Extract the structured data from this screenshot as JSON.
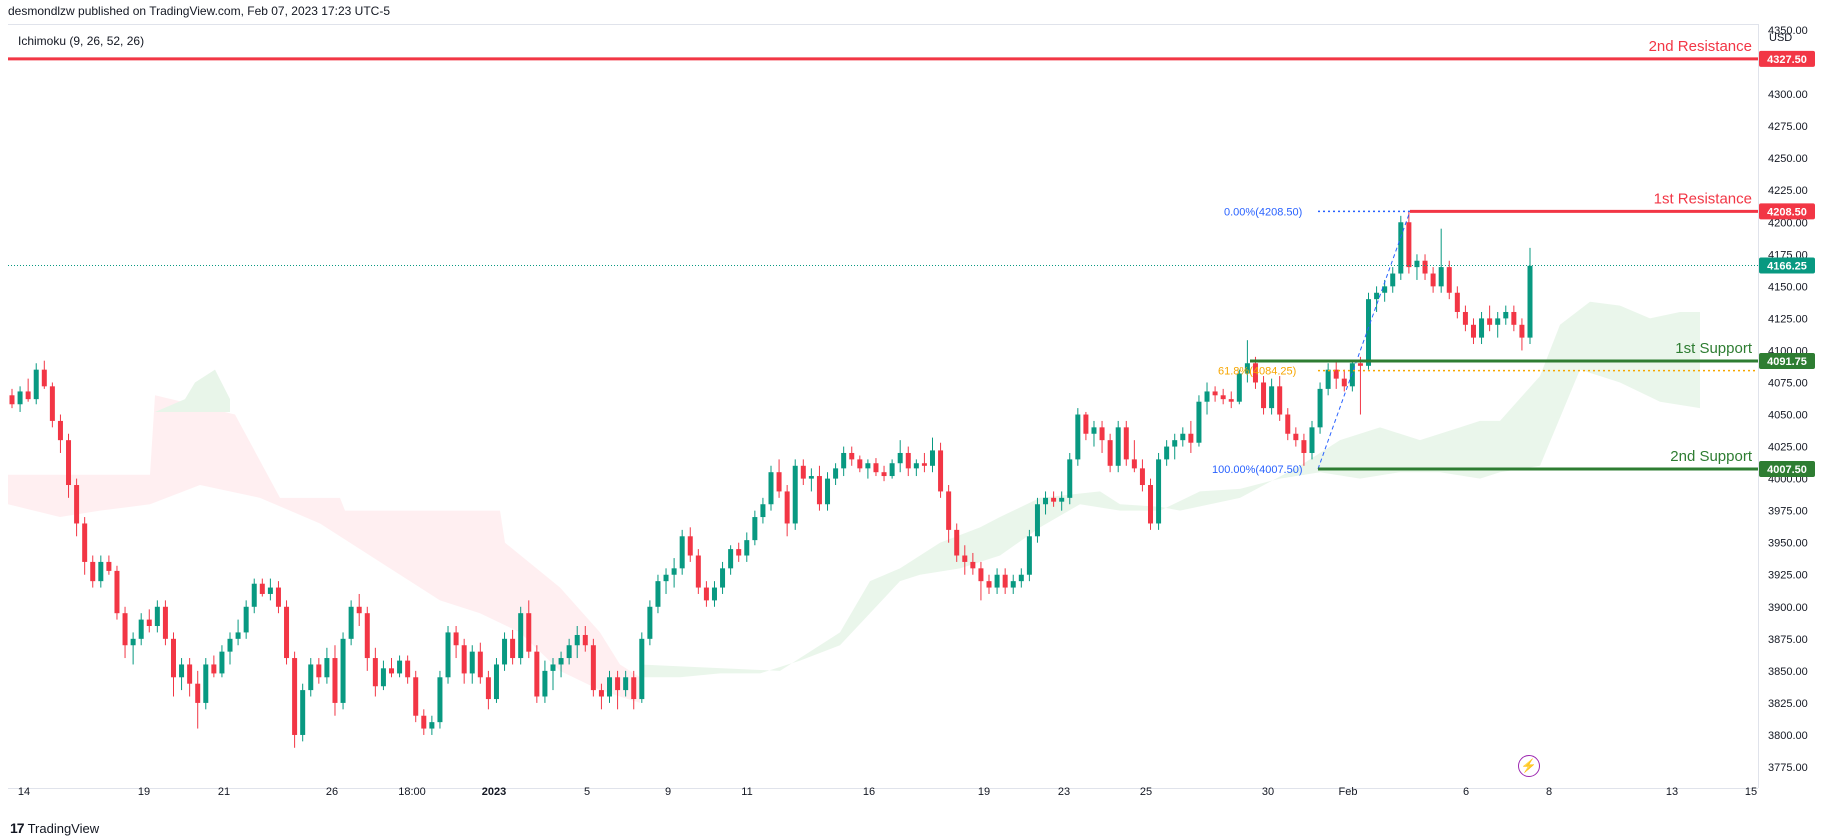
{
  "header": {
    "published": "desmondlzw published on TradingView.com, Feb 07, 2023 17:23 UTC-5",
    "indicator": "Ichimoku (9, 26, 52, 26)",
    "unit": "USD",
    "footer_brand": "TradingView"
  },
  "colors": {
    "up": "#089981",
    "down": "#f23645",
    "resistance": "#f23645",
    "support": "#2e7d32",
    "fib_blue": "#2962ff",
    "fib_orange": "#f7a600",
    "last_price": "#089981",
    "cloud_green": "#e8f5e9",
    "cloud_red": "#ffebee",
    "marker": "#9c27b0"
  },
  "chart_data": {
    "type": "candlestick",
    "y_axis": {
      "min": 3775,
      "max": 4350,
      "ticks": [
        3775,
        3800,
        3825,
        3850,
        3875,
        3900,
        3925,
        3950,
        3975,
        4000,
        4025,
        4050,
        4075,
        4100,
        4125,
        4150,
        4175,
        4200,
        4225,
        4250,
        4275,
        4300,
        4325,
        4350
      ]
    },
    "x_labels": [
      "14",
      "19",
      "21",
      "26",
      "18:00",
      "2023",
      "5",
      "9",
      "11",
      "16",
      "19",
      "23",
      "25",
      "30",
      "Feb",
      "6",
      "8",
      "13",
      "15"
    ],
    "levels": [
      {
        "label": "2nd Resistance",
        "value": 4327.5,
        "value_text": "4327.50",
        "kind": "resistance"
      },
      {
        "label": "1st Resistance",
        "value": 4208.5,
        "value_text": "4208.50",
        "kind": "resistance"
      },
      {
        "label": "1st Support",
        "value": 4091.75,
        "value_text": "4091.75",
        "kind": "support"
      },
      {
        "label": "2nd Support",
        "value": 4007.5,
        "value_text": "4007.50",
        "kind": "support"
      }
    ],
    "last_price": {
      "value": 4166.25,
      "value_text": "4166.25"
    },
    "fib": [
      {
        "label": "0.00%(4208.50)",
        "value": 4208.5
      },
      {
        "label": "61.8%(4084.25)",
        "value": 4084.25
      },
      {
        "label": "100.00%(4007.50)",
        "value": 4007.5
      }
    ],
    "candles": [
      [
        4065,
        4070,
        4055,
        4058
      ],
      [
        4058,
        4072,
        4052,
        4068
      ],
      [
        4068,
        4078,
        4060,
        4062
      ],
      [
        4062,
        4090,
        4058,
        4085
      ],
      [
        4085,
        4092,
        4070,
        4072
      ],
      [
        4072,
        4075,
        4040,
        4045
      ],
      [
        4045,
        4050,
        4020,
        4030
      ],
      [
        4030,
        4035,
        3985,
        3995
      ],
      [
        3995,
        4000,
        3955,
        3965
      ],
      [
        3965,
        3970,
        3925,
        3935
      ],
      [
        3935,
        3940,
        3915,
        3920
      ],
      [
        3920,
        3940,
        3915,
        3935
      ],
      [
        3935,
        3940,
        3925,
        3928
      ],
      [
        3928,
        3932,
        3890,
        3895
      ],
      [
        3895,
        3900,
        3860,
        3870
      ],
      [
        3870,
        3880,
        3855,
        3875
      ],
      [
        3875,
        3895,
        3870,
        3890
      ],
      [
        3890,
        3898,
        3880,
        3885
      ],
      [
        3885,
        3905,
        3880,
        3900
      ],
      [
        3900,
        3905,
        3870,
        3875
      ],
      [
        3875,
        3880,
        3830,
        3845
      ],
      [
        3845,
        3860,
        3835,
        3855
      ],
      [
        3855,
        3860,
        3830,
        3840
      ],
      [
        3840,
        3850,
        3805,
        3825
      ],
      [
        3825,
        3860,
        3820,
        3855
      ],
      [
        3855,
        3862,
        3845,
        3848
      ],
      [
        3848,
        3870,
        3845,
        3865
      ],
      [
        3865,
        3880,
        3855,
        3875
      ],
      [
        3875,
        3890,
        3870,
        3880
      ],
      [
        3880,
        3905,
        3875,
        3900
      ],
      [
        3900,
        3922,
        3895,
        3918
      ],
      [
        3918,
        3922,
        3908,
        3910
      ],
      [
        3910,
        3922,
        3905,
        3915
      ],
      [
        3915,
        3920,
        3895,
        3900
      ],
      [
        3900,
        3905,
        3855,
        3860
      ],
      [
        3860,
        3865,
        3790,
        3800
      ],
      [
        3800,
        3840,
        3795,
        3835
      ],
      [
        3835,
        3860,
        3830,
        3855
      ],
      [
        3855,
        3860,
        3840,
        3845
      ],
      [
        3845,
        3868,
        3840,
        3860
      ],
      [
        3860,
        3870,
        3815,
        3825
      ],
      [
        3825,
        3880,
        3820,
        3875
      ],
      [
        3875,
        3905,
        3870,
        3900
      ],
      [
        3900,
        3910,
        3885,
        3895
      ],
      [
        3895,
        3900,
        3850,
        3860
      ],
      [
        3860,
        3868,
        3830,
        3838
      ],
      [
        3838,
        3858,
        3835,
        3852
      ],
      [
        3852,
        3860,
        3845,
        3848
      ],
      [
        3848,
        3862,
        3845,
        3858
      ],
      [
        3858,
        3862,
        3840,
        3845
      ],
      [
        3845,
        3850,
        3810,
        3815
      ],
      [
        3815,
        3820,
        3800,
        3805
      ],
      [
        3805,
        3815,
        3800,
        3810
      ],
      [
        3810,
        3850,
        3805,
        3845
      ],
      [
        3845,
        3885,
        3840,
        3880
      ],
      [
        3880,
        3885,
        3860,
        3870
      ],
      [
        3870,
        3875,
        3840,
        3848
      ],
      [
        3848,
        3870,
        3840,
        3865
      ],
      [
        3865,
        3872,
        3840,
        3845
      ],
      [
        3845,
        3850,
        3820,
        3828
      ],
      [
        3828,
        3860,
        3825,
        3855
      ],
      [
        3855,
        3880,
        3850,
        3875
      ],
      [
        3875,
        3882,
        3855,
        3860
      ],
      [
        3860,
        3900,
        3855,
        3895
      ],
      [
        3895,
        3905,
        3860,
        3865
      ],
      [
        3865,
        3870,
        3825,
        3830
      ],
      [
        3830,
        3858,
        3825,
        3850
      ],
      [
        3850,
        3860,
        3835,
        3855
      ],
      [
        3855,
        3865,
        3845,
        3860
      ],
      [
        3860,
        3875,
        3855,
        3870
      ],
      [
        3870,
        3885,
        3860,
        3878
      ],
      [
        3878,
        3885,
        3865,
        3870
      ],
      [
        3870,
        3875,
        3830,
        3835
      ],
      [
        3835,
        3840,
        3820,
        3830
      ],
      [
        3830,
        3850,
        3825,
        3845
      ],
      [
        3845,
        3850,
        3820,
        3835
      ],
      [
        3835,
        3850,
        3830,
        3845
      ],
      [
        3845,
        3850,
        3820,
        3828
      ],
      [
        3828,
        3880,
        3825,
        3875
      ],
      [
        3875,
        3905,
        3870,
        3900
      ],
      [
        3900,
        3925,
        3895,
        3920
      ],
      [
        3920,
        3930,
        3910,
        3925
      ],
      [
        3925,
        3938,
        3915,
        3930
      ],
      [
        3930,
        3960,
        3925,
        3955
      ],
      [
        3955,
        3962,
        3935,
        3940
      ],
      [
        3940,
        3945,
        3910,
        3915
      ],
      [
        3915,
        3920,
        3900,
        3905
      ],
      [
        3905,
        3920,
        3900,
        3915
      ],
      [
        3915,
        3935,
        3910,
        3930
      ],
      [
        3930,
        3948,
        3925,
        3945
      ],
      [
        3945,
        3950,
        3935,
        3940
      ],
      [
        3940,
        3958,
        3935,
        3952
      ],
      [
        3952,
        3975,
        3948,
        3970
      ],
      [
        3970,
        3985,
        3965,
        3980
      ],
      [
        3980,
        4010,
        3975,
        4005
      ],
      [
        4005,
        4015,
        3985,
        3990
      ],
      [
        3990,
        3995,
        3955,
        3965
      ],
      [
        3965,
        4015,
        3960,
        4010
      ],
      [
        4010,
        4015,
        3995,
        4000
      ],
      [
        4000,
        4008,
        3990,
        4002
      ],
      [
        4002,
        4010,
        3975,
        3980
      ],
      [
        3980,
        4005,
        3975,
        4000
      ],
      [
        4000,
        4012,
        3995,
        4008
      ],
      [
        4008,
        4025,
        4002,
        4020
      ],
      [
        4020,
        4025,
        4010,
        4015
      ],
      [
        4015,
        4018,
        4005,
        4008
      ],
      [
        4008,
        4015,
        4000,
        4012
      ],
      [
        4012,
        4016,
        4002,
        4005
      ],
      [
        4005,
        4010,
        3998,
        4002
      ],
      [
        4002,
        4015,
        4000,
        4012
      ],
      [
        4012,
        4030,
        4005,
        4020
      ],
      [
        4020,
        4025,
        4002,
        4008
      ],
      [
        4008,
        4015,
        4002,
        4012
      ],
      [
        4012,
        4020,
        4005,
        4010
      ],
      [
        4010,
        4032,
        4005,
        4022
      ],
      [
        4022,
        4028,
        3985,
        3990
      ],
      [
        3990,
        3995,
        3950,
        3960
      ],
      [
        3960,
        3965,
        3935,
        3940
      ],
      [
        3940,
        3948,
        3925,
        3935
      ],
      [
        3935,
        3942,
        3925,
        3930
      ],
      [
        3930,
        3935,
        3905,
        3920
      ],
      [
        3920,
        3925,
        3910,
        3915
      ],
      [
        3915,
        3930,
        3910,
        3925
      ],
      [
        3925,
        3930,
        3910,
        3915
      ],
      [
        3915,
        3925,
        3910,
        3920
      ],
      [
        3920,
        3930,
        3915,
        3925
      ],
      [
        3925,
        3960,
        3920,
        3955
      ],
      [
        3955,
        3985,
        3950,
        3980
      ],
      [
        3980,
        3990,
        3972,
        3985
      ],
      [
        3985,
        3990,
        3978,
        3982
      ],
      [
        3982,
        3990,
        3975,
        3985
      ],
      [
        3985,
        4020,
        3980,
        4015
      ],
      [
        4015,
        4055,
        4010,
        4050
      ],
      [
        4050,
        4052,
        4030,
        4035
      ],
      [
        4035,
        4045,
        4025,
        4040
      ],
      [
        4040,
        4045,
        4020,
        4030
      ],
      [
        4030,
        4035,
        4005,
        4010
      ],
      [
        4010,
        4045,
        4005,
        4040
      ],
      [
        4040,
        4045,
        4010,
        4015
      ],
      [
        4015,
        4030,
        4005,
        4008
      ],
      [
        4008,
        4015,
        3990,
        3995
      ],
      [
        3995,
        4000,
        3960,
        3965
      ],
      [
        3965,
        4020,
        3960,
        4015
      ],
      [
        4015,
        4030,
        4010,
        4025
      ],
      [
        4025,
        4035,
        4015,
        4030
      ],
      [
        4030,
        4040,
        4025,
        4035
      ],
      [
        4035,
        4045,
        4020,
        4028
      ],
      [
        4028,
        4065,
        4025,
        4060
      ],
      [
        4060,
        4075,
        4050,
        4068
      ],
      [
        4068,
        4072,
        4060,
        4065
      ],
      [
        4065,
        4070,
        4058,
        4062
      ],
      [
        4062,
        4068,
        4055,
        4060
      ],
      [
        4060,
        4085,
        4058,
        4082
      ],
      [
        4082,
        4108,
        4075,
        4090
      ],
      [
        4090,
        4095,
        4070,
        4075
      ],
      [
        4075,
        4080,
        4050,
        4055
      ],
      [
        4055,
        4078,
        4050,
        4072
      ],
      [
        4072,
        4080,
        4045,
        4050
      ],
      [
        4050,
        4055,
        4030,
        4035
      ],
      [
        4035,
        4040,
        4025,
        4030
      ],
      [
        4030,
        4035,
        4010,
        4020
      ],
      [
        4020,
        4045,
        4015,
        4040
      ],
      [
        4040,
        4075,
        4035,
        4070
      ],
      [
        4070,
        4090,
        4065,
        4085
      ],
      [
        4085,
        4092,
        4070,
        4078
      ],
      [
        4078,
        4085,
        4068,
        4072
      ],
      [
        4072,
        4092,
        4068,
        4090
      ],
      [
        4090,
        4095,
        4050,
        4088
      ],
      [
        4088,
        4145,
        4085,
        4140
      ],
      [
        4140,
        4150,
        4130,
        4145
      ],
      [
        4145,
        4155,
        4138,
        4150
      ],
      [
        4150,
        4165,
        4145,
        4160
      ],
      [
        4160,
        4205,
        4155,
        4200
      ],
      [
        4200,
        4208,
        4160,
        4165
      ],
      [
        4165,
        4175,
        4155,
        4170
      ],
      [
        4170,
        4175,
        4155,
        4160
      ],
      [
        4160,
        4165,
        4145,
        4150
      ],
      [
        4150,
        4195,
        4145,
        4165
      ],
      [
        4165,
        4170,
        4140,
        4145
      ],
      [
        4145,
        4150,
        4125,
        4130
      ],
      [
        4130,
        4135,
        4115,
        4120
      ],
      [
        4120,
        4125,
        4105,
        4110
      ],
      [
        4110,
        4130,
        4105,
        4125
      ],
      [
        4125,
        4135,
        4115,
        4120
      ],
      [
        4120,
        4130,
        4110,
        4125
      ],
      [
        4125,
        4135,
        4120,
        4130
      ],
      [
        4130,
        4135,
        4115,
        4120
      ],
      [
        4120,
        4125,
        4100,
        4110
      ],
      [
        4110,
        4180,
        4105,
        4166
      ]
    ]
  }
}
